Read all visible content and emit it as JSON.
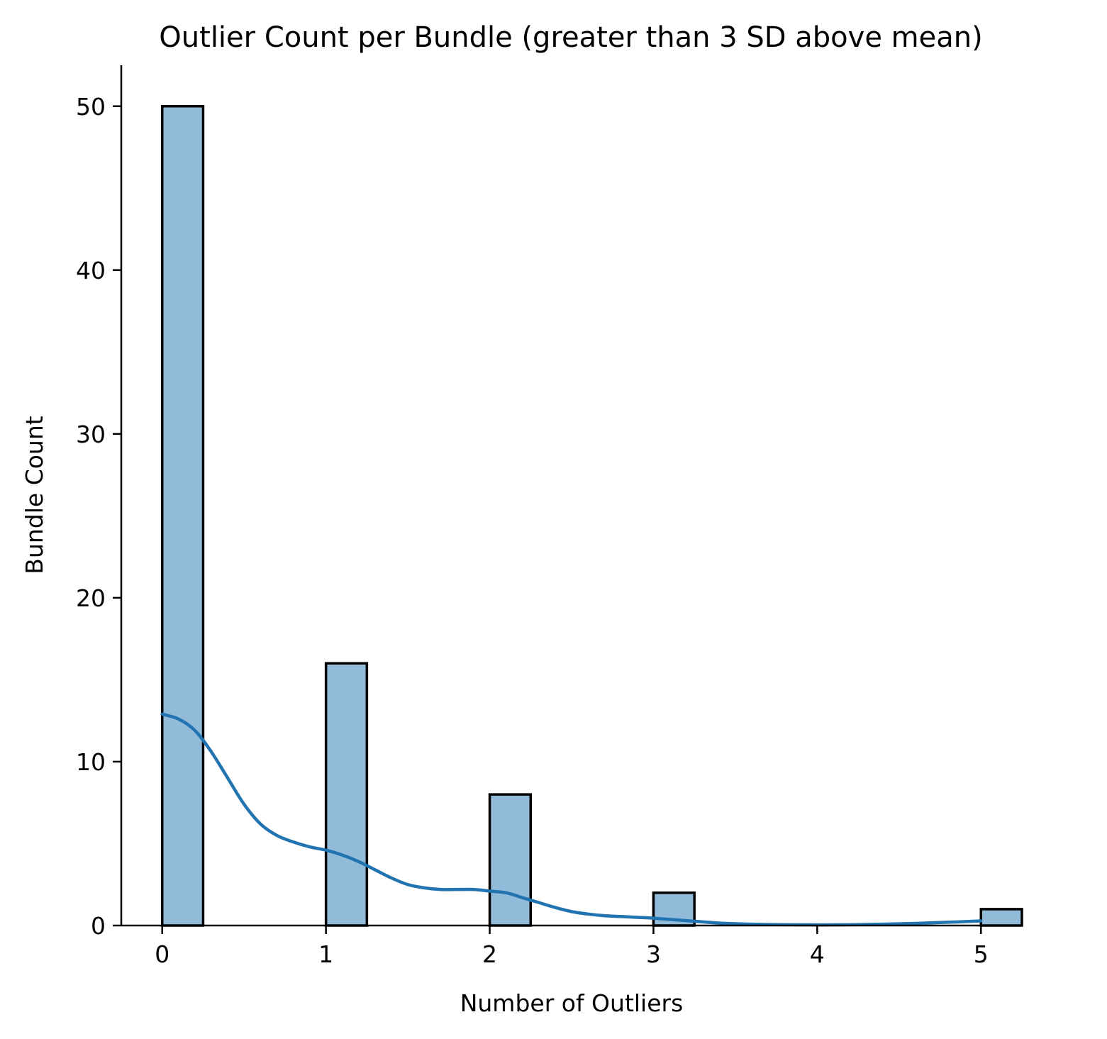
{
  "chart_data": {
    "type": "bar",
    "title": "Outlier Count per Bundle (greater than 3 SD above mean)",
    "xlabel": "Number of Outliers",
    "ylabel": "Bundle Count",
    "xlim": [
      -0.25,
      5.25
    ],
    "ylim": [
      0,
      52.5
    ],
    "xticks": [
      0,
      1,
      2,
      3,
      4,
      5
    ],
    "yticks": [
      0,
      10,
      20,
      30,
      40,
      50
    ],
    "bin_width": 0.25,
    "bars": [
      {
        "x": 0,
        "count": 50
      },
      {
        "x": 1,
        "count": 16
      },
      {
        "x": 2,
        "count": 8
      },
      {
        "x": 3,
        "count": 2
      },
      {
        "x": 5,
        "count": 1
      }
    ],
    "kde_curve": {
      "x": [
        0,
        0.1,
        0.2,
        0.3,
        0.4,
        0.5,
        0.6,
        0.7,
        0.8,
        0.9,
        1.0,
        1.1,
        1.2,
        1.3,
        1.4,
        1.5,
        1.6,
        1.7,
        1.8,
        1.9,
        2.0,
        2.1,
        2.2,
        2.3,
        2.4,
        2.5,
        2.6,
        2.7,
        2.8,
        2.9,
        3.0,
        3.2,
        3.4,
        3.6,
        3.8,
        4.0,
        4.2,
        4.4,
        4.6,
        4.8,
        5.0
      ],
      "y": [
        12.9,
        12.6,
        11.9,
        10.6,
        9.0,
        7.4,
        6.2,
        5.5,
        5.1,
        4.8,
        4.6,
        4.3,
        3.9,
        3.4,
        2.9,
        2.5,
        2.3,
        2.2,
        2.2,
        2.2,
        2.1,
        2.0,
        1.7,
        1.4,
        1.1,
        0.85,
        0.7,
        0.6,
        0.55,
        0.5,
        0.45,
        0.3,
        0.15,
        0.08,
        0.05,
        0.04,
        0.05,
        0.08,
        0.13,
        0.2,
        0.28
      ]
    },
    "colors": {
      "bar": "#92bad9",
      "kde": "#2274b1"
    },
    "grid": false
  }
}
